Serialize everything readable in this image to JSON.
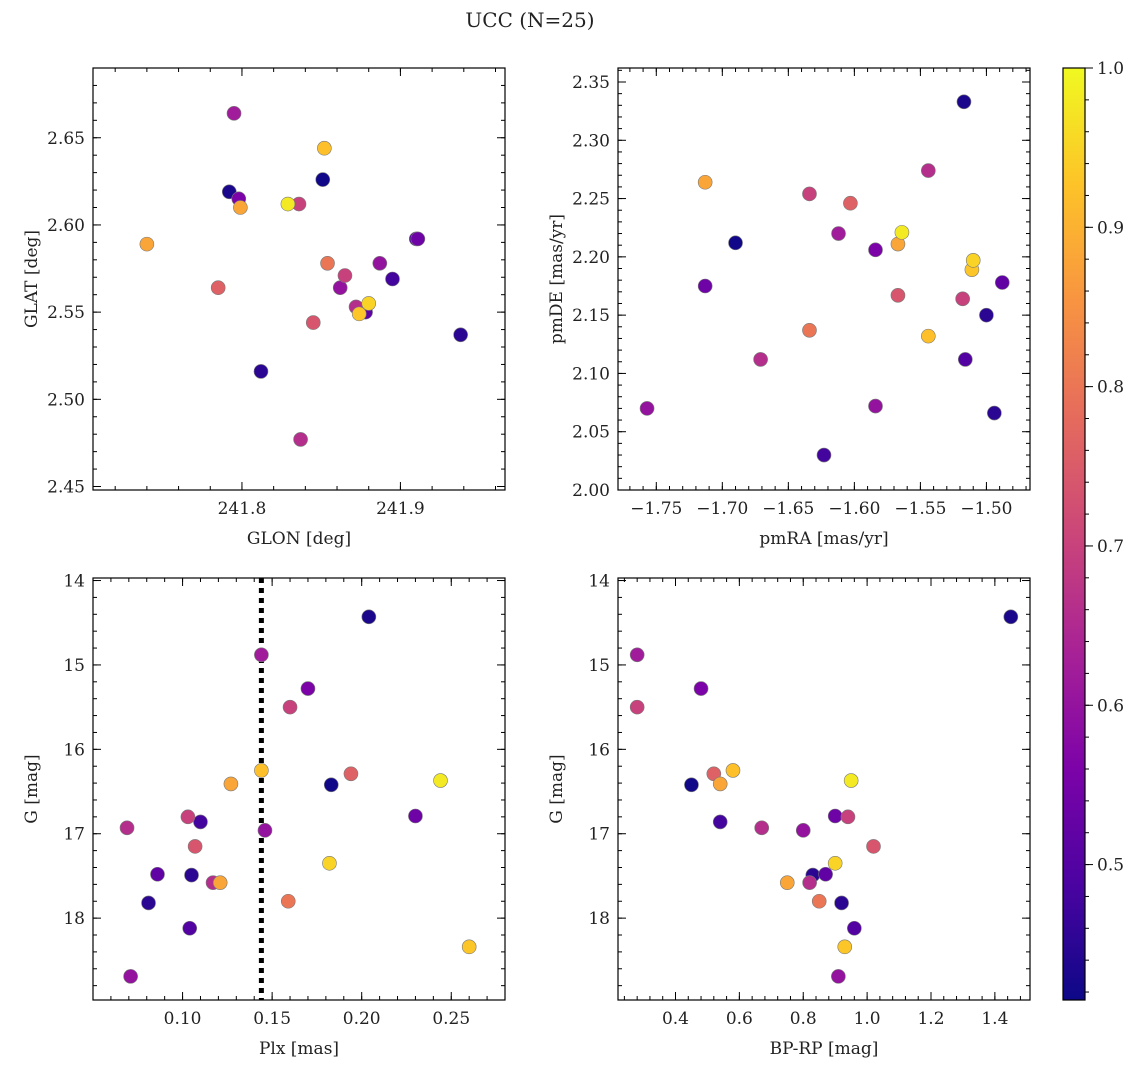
{
  "chart_data": {
    "title": "UCC (N=25)",
    "colorbar": {
      "cmap": "plasma",
      "range": [
        0.415,
        1.0
      ],
      "ticks": [
        0.5,
        0.6,
        0.7,
        0.8,
        0.9,
        1.0
      ],
      "tick_labels": [
        "0.5",
        "0.6",
        "0.7",
        "0.8",
        "0.9",
        "1.0"
      ]
    },
    "members_probability": [
      0.43,
      0.62,
      0.56,
      0.7,
      0.92,
      0.88,
      0.76,
      0.98,
      0.42,
      0.54,
      0.7,
      0.48,
      0.6,
      0.66,
      0.74,
      0.95,
      0.52,
      0.45,
      0.66,
      0.88,
      0.8,
      0.45,
      0.5,
      0.93,
      0.6
    ],
    "panels": [
      {
        "type": "scatter",
        "xlabel": "GLON [deg]",
        "ylabel": "GLAT [deg]",
        "xlim": [
          241.706,
          241.966
        ],
        "ylim": [
          2.448,
          2.69
        ],
        "xticks": [
          241.8,
          241.9
        ],
        "xtick_labels": [
          "241.8",
          "241.9"
        ],
        "yticks": [
          2.45,
          2.5,
          2.55,
          2.6,
          2.65
        ],
        "ytick_labels": [
          "2.45",
          "2.50",
          "2.55",
          "2.60",
          "2.65"
        ],
        "x": [
          241.792,
          241.795,
          241.798,
          241.836,
          241.852,
          241.74,
          241.785,
          241.829,
          241.851,
          241.911,
          241.865,
          241.895,
          241.887,
          241.872,
          241.845,
          241.88,
          241.878,
          241.812,
          241.837,
          241.799,
          241.854,
          241.938,
          241.91,
          241.874,
          241.862
        ],
        "y": [
          2.619,
          2.664,
          2.615,
          2.612,
          2.644,
          2.589,
          2.564,
          2.612,
          2.626,
          2.592,
          2.571,
          2.569,
          2.578,
          2.553,
          2.544,
          2.555,
          2.55,
          2.516,
          2.477,
          2.61,
          2.578,
          2.537,
          2.592,
          2.549,
          2.564
        ]
      },
      {
        "type": "scatter",
        "xlabel": "pmRA [mas/yr]",
        "ylabel": "pmDE [mas/yr]",
        "xlim": [
          -1.779,
          -1.467
        ],
        "ylim": [
          2.0,
          2.362
        ],
        "xticks": [
          -1.75,
          -1.7,
          -1.65,
          -1.6,
          -1.55,
          -1.5
        ],
        "xtick_labels": [
          "−1.75",
          "−1.70",
          "−1.65",
          "−1.60",
          "−1.55",
          "−1.50"
        ],
        "yticks": [
          2.0,
          2.05,
          2.1,
          2.15,
          2.2,
          2.25,
          2.3,
          2.35
        ],
        "ytick_labels": [
          "2.00",
          "2.05",
          "2.10",
          "2.15",
          "2.20",
          "2.25",
          "2.30",
          "2.35"
        ],
        "x": [
          -1.517,
          -1.612,
          -1.584,
          -1.634,
          -1.544,
          -1.713,
          -1.603,
          -1.564,
          -1.69,
          -1.713,
          -1.518,
          -1.623,
          -1.584,
          -1.671,
          -1.567,
          -1.51,
          -1.488,
          -1.5,
          -1.544,
          -1.567,
          -1.634,
          -1.494,
          -1.516,
          -1.511,
          -1.757
        ],
        "y": [
          2.333,
          2.22,
          2.206,
          2.254,
          2.132,
          2.264,
          2.246,
          2.221,
          2.212,
          2.175,
          2.164,
          2.03,
          2.072,
          2.112,
          2.167,
          2.197,
          2.178,
          2.15,
          2.274,
          2.211,
          2.137,
          2.066,
          2.112,
          2.189,
          2.07
        ]
      },
      {
        "type": "scatter",
        "xlabel": "Plx [mas]",
        "ylabel": "G [mag]",
        "xlim": [
          0.05,
          0.28
        ],
        "ylim": [
          18.97,
          13.97
        ],
        "y_inverted": true,
        "reference_line": {
          "x": 0.144,
          "style": "dotted"
        },
        "xticks": [
          0.1,
          0.15,
          0.2,
          0.25
        ],
        "xtick_labels": [
          "0.10",
          "0.15",
          "0.20",
          "0.25"
        ],
        "yticks": [
          14,
          15,
          16,
          17,
          18
        ],
        "ytick_labels": [
          "14",
          "15",
          "16",
          "17",
          "18"
        ],
        "x": [
          0.204,
          0.144,
          0.17,
          0.16,
          0.144,
          0.127,
          0.194,
          0.244,
          0.183,
          0.23,
          0.103,
          0.11,
          0.146,
          0.069,
          0.107,
          0.182,
          0.086,
          0.105,
          0.117,
          0.121,
          0.159,
          0.081,
          0.104,
          0.26,
          0.071
        ],
        "y": [
          14.43,
          14.88,
          15.28,
          15.5,
          16.25,
          16.41,
          16.29,
          16.37,
          16.42,
          16.79,
          16.8,
          16.86,
          16.96,
          16.93,
          17.15,
          17.35,
          17.48,
          17.49,
          17.58,
          17.58,
          17.8,
          17.82,
          18.12,
          18.34,
          18.69
        ]
      },
      {
        "type": "scatter",
        "xlabel": "BP-RP [mag]",
        "ylabel": "G [mag]",
        "xlim": [
          0.22,
          1.51
        ],
        "ylim": [
          18.97,
          13.97
        ],
        "y_inverted": true,
        "xticks": [
          0.4,
          0.6,
          0.8,
          1.0,
          1.2,
          1.4
        ],
        "xtick_labels": [
          "0.4",
          "0.6",
          "0.8",
          "1.0",
          "1.2",
          "1.4"
        ],
        "yticks": [
          14,
          15,
          16,
          17,
          18
        ],
        "ytick_labels": [
          "14",
          "15",
          "16",
          "17",
          "18"
        ],
        "x": [
          1.45,
          0.28,
          0.48,
          0.28,
          0.58,
          0.54,
          0.52,
          0.95,
          0.45,
          0.9,
          0.94,
          0.54,
          0.8,
          0.67,
          1.02,
          0.9,
          0.87,
          0.83,
          0.82,
          0.75,
          0.85,
          0.92,
          0.96,
          0.93,
          0.91
        ],
        "y": [
          14.43,
          14.88,
          15.28,
          15.5,
          16.25,
          16.41,
          16.29,
          16.37,
          16.42,
          16.79,
          16.8,
          16.86,
          16.96,
          16.93,
          17.15,
          17.35,
          17.48,
          17.49,
          17.58,
          17.58,
          17.8,
          17.82,
          18.12,
          18.34,
          18.69
        ]
      }
    ]
  }
}
